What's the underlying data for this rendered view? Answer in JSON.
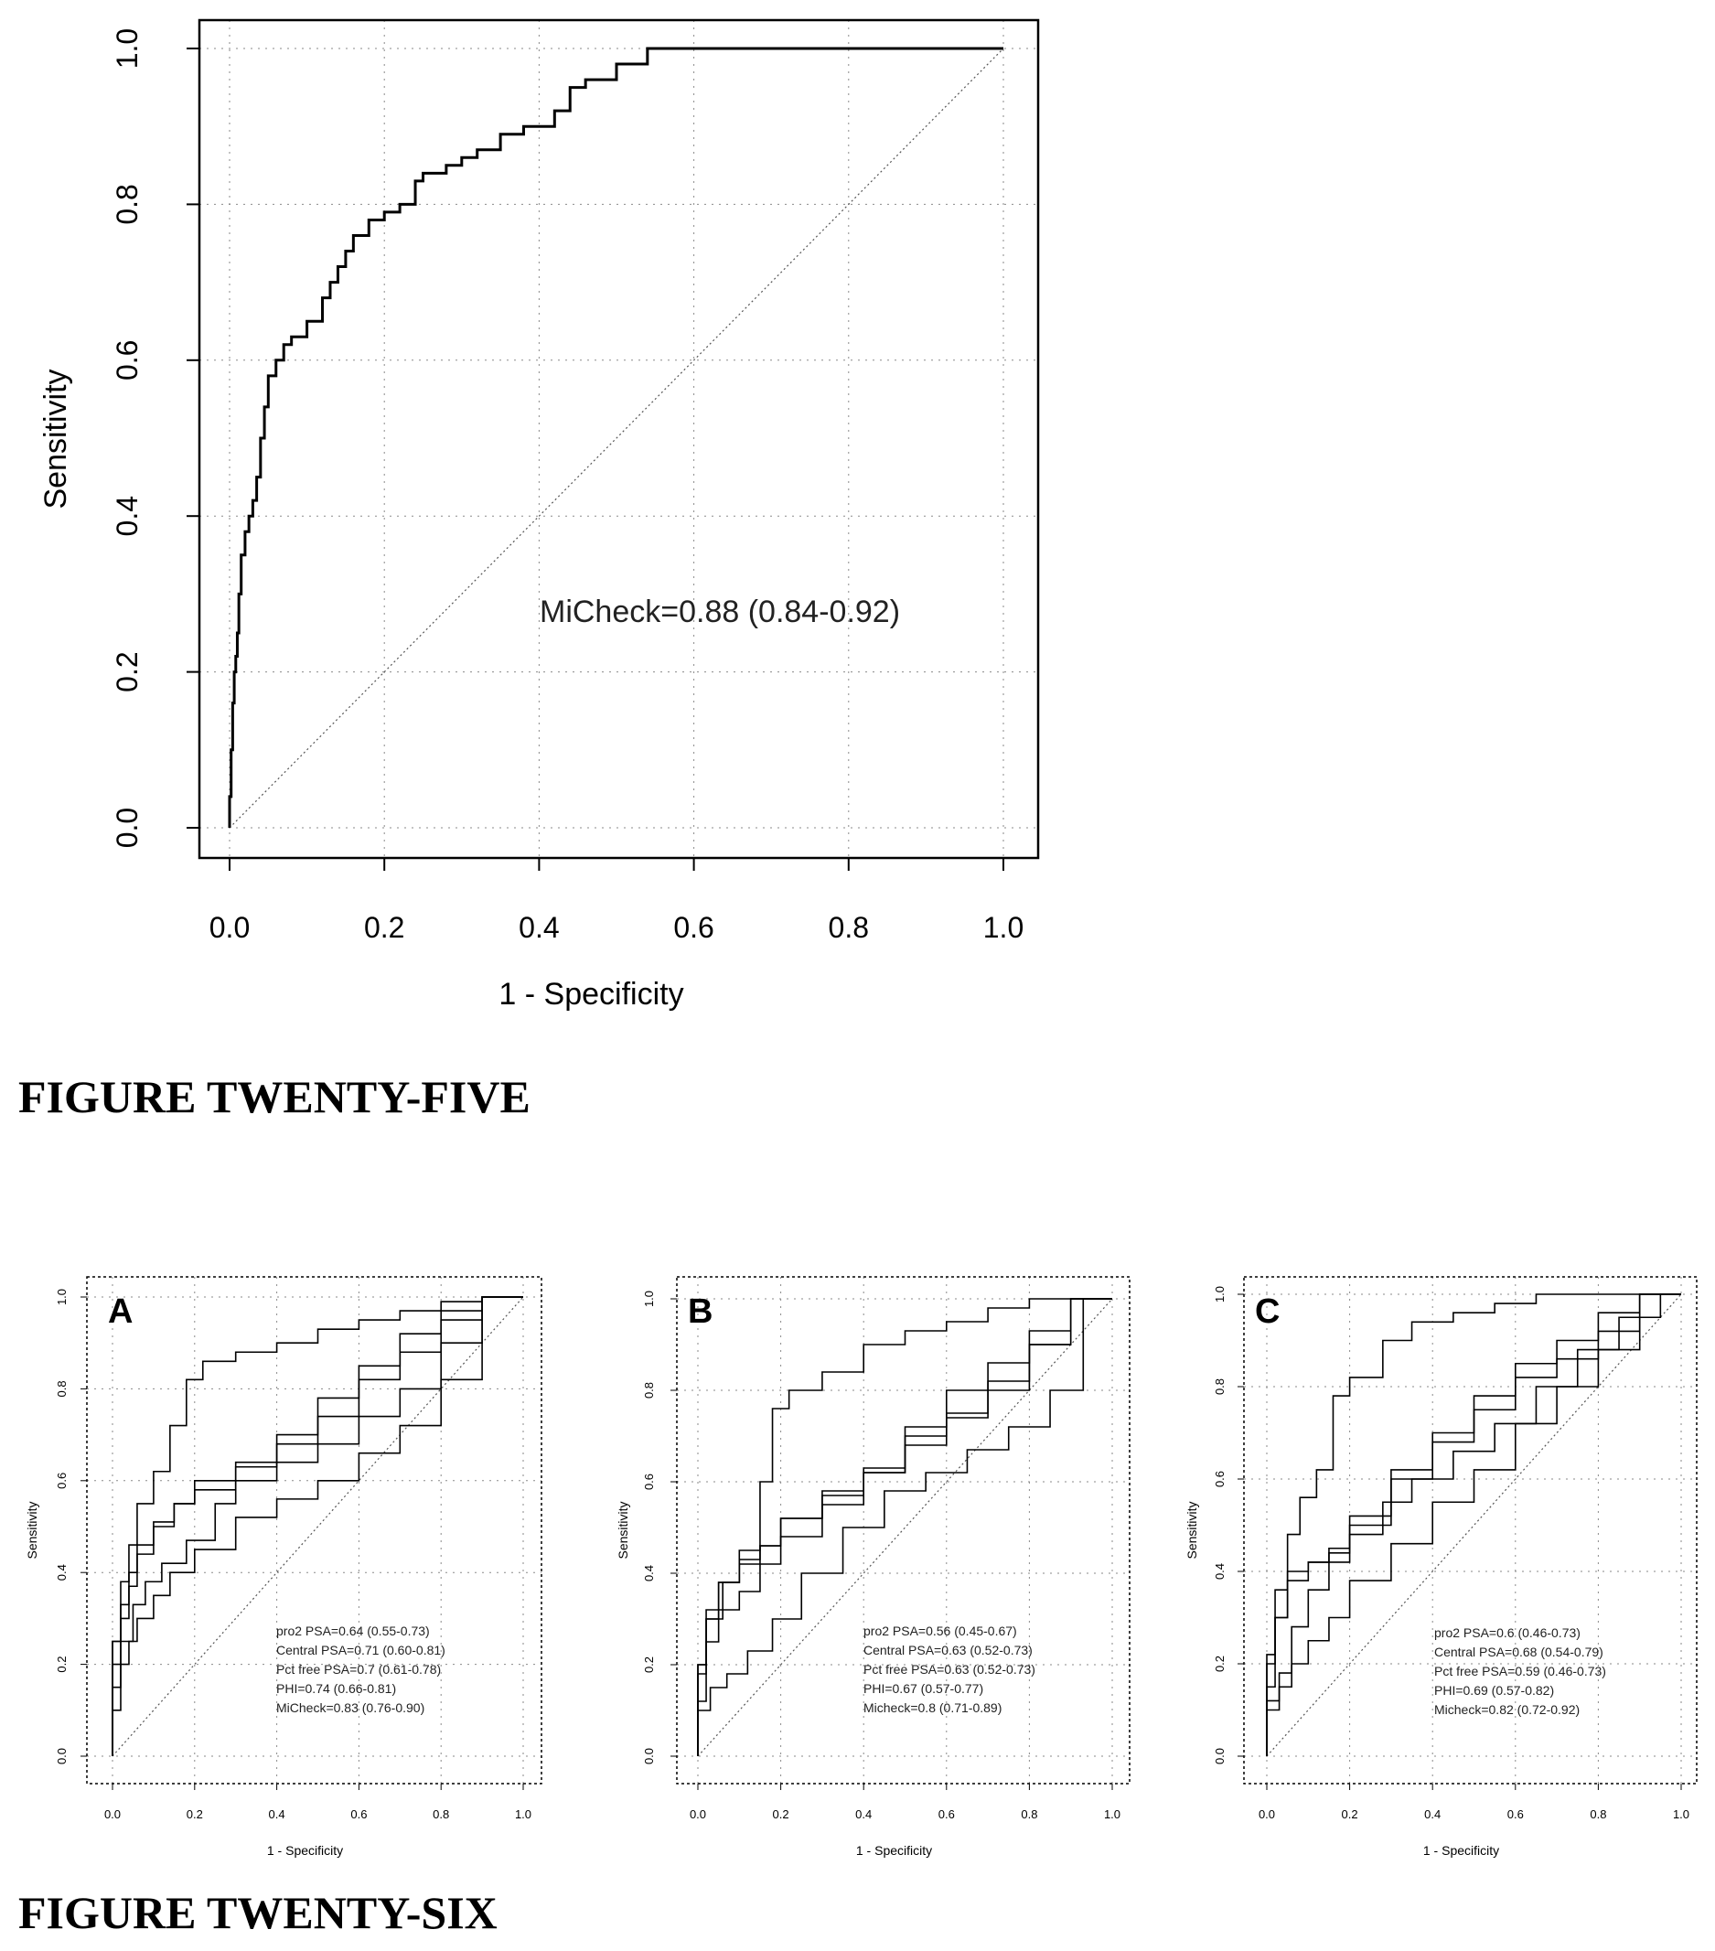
{
  "figures": {
    "figure25_caption": "FIGURE TWENTY-FIVE",
    "figure26_caption": "FIGURE TWENTY-SIX"
  },
  "colors": {
    "ink": "#000000",
    "grid": "#8a8a8a",
    "background": "#ffffff"
  },
  "chart_data": [
    {
      "id": "fig25",
      "type": "line",
      "xlabel": "1 - Specificity",
      "ylabel": "Sensitivity",
      "xlim": [
        0,
        1
      ],
      "ylim": [
        0,
        1
      ],
      "xticks": [
        "0.0",
        "0.2",
        "0.4",
        "0.6",
        "0.8",
        "1.0"
      ],
      "yticks": [
        "0.0",
        "0.2",
        "0.4",
        "0.6",
        "0.8",
        "1.0"
      ],
      "grid": true,
      "diagonal_reference": true,
      "annotations": [
        "MiCheck=0.88 (0.84-0.92)"
      ],
      "series": [
        {
          "x": [
            0,
            0.002,
            0.004,
            0.006,
            0.008,
            0.01,
            0.012,
            0.015,
            0.02,
            0.025,
            0.03,
            0.035,
            0.04,
            0.045,
            0.05,
            0.06,
            0.07,
            0.08,
            0.1,
            0.12,
            0.13,
            0.14,
            0.15,
            0.16,
            0.18,
            0.2,
            0.22,
            0.24,
            0.25,
            0.28,
            0.3,
            0.32,
            0.35,
            0.38,
            0.42,
            0.44,
            0.46,
            0.5,
            0.54,
            0.56,
            0.6,
            1.0
          ],
          "y": [
            0,
            0.04,
            0.1,
            0.16,
            0.2,
            0.22,
            0.25,
            0.3,
            0.35,
            0.38,
            0.4,
            0.42,
            0.45,
            0.5,
            0.54,
            0.58,
            0.6,
            0.62,
            0.63,
            0.65,
            0.68,
            0.7,
            0.72,
            0.74,
            0.76,
            0.78,
            0.79,
            0.8,
            0.83,
            0.84,
            0.85,
            0.86,
            0.87,
            0.89,
            0.9,
            0.92,
            0.95,
            0.96,
            0.98,
            1.0,
            1.0,
            1.0
          ]
        }
      ]
    },
    {
      "id": "fig26A",
      "type": "line",
      "panel_label": "A",
      "xlabel": "1 - Specificity",
      "ylabel": "Sensitivity",
      "xlim": [
        0,
        1
      ],
      "ylim": [
        0,
        1
      ],
      "xticks": [
        "0.0",
        "0.2",
        "0.4",
        "0.6",
        "0.8",
        "1.0"
      ],
      "yticks": [
        "0.0",
        "0.2",
        "0.4",
        "0.6",
        "0.8",
        "1.0"
      ],
      "grid": true,
      "diagonal_reference": true,
      "legend": [
        "pro2 PSA=0.64 (0.55-0.73)",
        "Central PSA=0.71 (0.60-0.81)",
        "Pct free PSA=0.7 (0.61-0.78)",
        "PHI=0.74 (0.66-0.81)",
        "MiCheck=0.83 (0.76-0.90)"
      ],
      "series": [
        {
          "x": [
            0,
            0.02,
            0.04,
            0.06,
            0.1,
            0.14,
            0.2,
            0.3,
            0.4,
            0.5,
            0.6,
            0.7,
            0.8,
            0.9,
            1.0
          ],
          "y": [
            0,
            0.1,
            0.2,
            0.25,
            0.3,
            0.35,
            0.4,
            0.45,
            0.52,
            0.56,
            0.6,
            0.66,
            0.72,
            0.82,
            1.0
          ]
        },
        {
          "x": [
            0,
            0.02,
            0.04,
            0.06,
            0.1,
            0.15,
            0.2,
            0.3,
            0.4,
            0.5,
            0.6,
            0.7,
            0.8,
            0.9,
            1.0
          ],
          "y": [
            0,
            0.2,
            0.3,
            0.37,
            0.44,
            0.5,
            0.55,
            0.58,
            0.63,
            0.68,
            0.74,
            0.82,
            0.88,
            0.95,
            1.0
          ]
        },
        {
          "x": [
            0,
            0.02,
            0.05,
            0.08,
            0.12,
            0.18,
            0.25,
            0.3,
            0.4,
            0.5,
            0.6,
            0.7,
            0.8,
            0.9,
            1.0
          ],
          "y": [
            0,
            0.15,
            0.25,
            0.33,
            0.38,
            0.42,
            0.47,
            0.55,
            0.6,
            0.64,
            0.68,
            0.74,
            0.8,
            0.9,
            1.0
          ]
        },
        {
          "x": [
            0,
            0.02,
            0.04,
            0.06,
            0.1,
            0.15,
            0.2,
            0.3,
            0.4,
            0.5,
            0.6,
            0.7,
            0.8,
            0.9,
            1.0
          ],
          "y": [
            0,
            0.25,
            0.33,
            0.4,
            0.46,
            0.51,
            0.55,
            0.6,
            0.64,
            0.7,
            0.78,
            0.85,
            0.92,
            0.97,
            1.0
          ]
        },
        {
          "x": [
            0,
            0.02,
            0.04,
            0.06,
            0.1,
            0.14,
            0.18,
            0.22,
            0.3,
            0.4,
            0.5,
            0.6,
            0.7,
            0.8,
            0.9,
            1.0
          ],
          "y": [
            0,
            0.25,
            0.38,
            0.46,
            0.55,
            0.62,
            0.72,
            0.82,
            0.86,
            0.88,
            0.9,
            0.93,
            0.95,
            0.97,
            0.99,
            1.0
          ]
        }
      ]
    },
    {
      "id": "fig26B",
      "type": "line",
      "panel_label": "B",
      "xlabel": "1 - Specificity",
      "ylabel": "Sensitivity",
      "xlim": [
        0,
        1
      ],
      "ylim": [
        0,
        1
      ],
      "xticks": [
        "0.0",
        "0.2",
        "0.4",
        "0.6",
        "0.8",
        "1.0"
      ],
      "yticks": [
        "0.0",
        "0.2",
        "0.4",
        "0.6",
        "0.8",
        "1.0"
      ],
      "grid": true,
      "diagonal_reference": true,
      "legend": [
        "pro2 PSA=0.56 (0.45-0.67)",
        "Central PSA=0.63 (0.52-0.73)",
        "Pct free PSA=0.63 (0.52-0.73)",
        "PHI=0.67 (0.57-0.77)",
        "Micheck=0.8 (0.71-0.89)"
      ],
      "series": [
        {
          "x": [
            0,
            0.03,
            0.07,
            0.12,
            0.18,
            0.25,
            0.35,
            0.45,
            0.55,
            0.65,
            0.75,
            0.85,
            0.93,
            1.0
          ],
          "y": [
            0,
            0.1,
            0.15,
            0.18,
            0.23,
            0.3,
            0.4,
            0.5,
            0.58,
            0.62,
            0.67,
            0.72,
            0.8,
            1.0
          ]
        },
        {
          "x": [
            0,
            0.02,
            0.05,
            0.1,
            0.15,
            0.2,
            0.3,
            0.4,
            0.5,
            0.6,
            0.7,
            0.8,
            0.9,
            1.0
          ],
          "y": [
            0,
            0.12,
            0.25,
            0.32,
            0.36,
            0.42,
            0.48,
            0.55,
            0.62,
            0.7,
            0.75,
            0.82,
            0.9,
            1.0
          ]
        },
        {
          "x": [
            0,
            0.02,
            0.06,
            0.1,
            0.15,
            0.2,
            0.3,
            0.4,
            0.5,
            0.6,
            0.7,
            0.8,
            0.9,
            1.0
          ],
          "y": [
            0,
            0.2,
            0.3,
            0.38,
            0.43,
            0.46,
            0.52,
            0.57,
            0.62,
            0.68,
            0.74,
            0.8,
            0.9,
            1.0
          ]
        },
        {
          "x": [
            0,
            0.02,
            0.05,
            0.1,
            0.15,
            0.2,
            0.3,
            0.4,
            0.5,
            0.6,
            0.7,
            0.8,
            0.9,
            1.0
          ],
          "y": [
            0,
            0.2,
            0.32,
            0.38,
            0.42,
            0.46,
            0.52,
            0.58,
            0.63,
            0.72,
            0.8,
            0.86,
            0.93,
            1.0
          ]
        },
        {
          "x": [
            0,
            0.02,
            0.05,
            0.1,
            0.15,
            0.18,
            0.22,
            0.3,
            0.4,
            0.5,
            0.6,
            0.7,
            0.8,
            0.9,
            1.0
          ],
          "y": [
            0,
            0.18,
            0.3,
            0.38,
            0.45,
            0.6,
            0.76,
            0.8,
            0.84,
            0.9,
            0.93,
            0.95,
            0.98,
            1.0,
            1.0
          ]
        }
      ]
    },
    {
      "id": "fig26C",
      "type": "line",
      "panel_label": "C",
      "xlabel": "1 - Specificity",
      "ylabel": "Sensitivity",
      "xlim": [
        0,
        1
      ],
      "ylim": [
        0,
        1
      ],
      "xticks": [
        "0.0",
        "0.2",
        "0.4",
        "0.6",
        "0.8",
        "1.0"
      ],
      "yticks": [
        "0.0",
        "0.2",
        "0.4",
        "0.6",
        "0.8",
        "1.0"
      ],
      "grid": true,
      "diagonal_reference": true,
      "legend": [
        "pro2 PSA=0.6 (0.46-0.73)",
        "Central PSA=0.68 (0.54-0.79)",
        "Pct free PSA=0.59 (0.46-0.73)",
        "PHI=0.69 (0.57-0.82)",
        "Micheck=0.82 (0.72-0.92)"
      ],
      "series": [
        {
          "x": [
            0,
            0.03,
            0.06,
            0.1,
            0.15,
            0.2,
            0.3,
            0.4,
            0.5,
            0.6,
            0.7,
            0.8,
            0.9,
            1.0
          ],
          "y": [
            0,
            0.1,
            0.15,
            0.2,
            0.25,
            0.3,
            0.38,
            0.46,
            0.55,
            0.62,
            0.72,
            0.8,
            0.88,
            1.0
          ]
        },
        {
          "x": [
            0,
            0.02,
            0.05,
            0.1,
            0.15,
            0.2,
            0.3,
            0.4,
            0.5,
            0.6,
            0.7,
            0.8,
            0.9,
            1.0
          ],
          "y": [
            0,
            0.15,
            0.3,
            0.4,
            0.42,
            0.44,
            0.5,
            0.6,
            0.68,
            0.75,
            0.82,
            0.86,
            0.92,
            1.0
          ]
        },
        {
          "x": [
            0,
            0.03,
            0.06,
            0.1,
            0.15,
            0.2,
            0.28,
            0.35,
            0.45,
            0.55,
            0.65,
            0.75,
            0.85,
            0.95,
            1.0
          ],
          "y": [
            0,
            0.12,
            0.18,
            0.28,
            0.36,
            0.42,
            0.48,
            0.55,
            0.6,
            0.66,
            0.72,
            0.8,
            0.88,
            0.95,
            1.0
          ]
        },
        {
          "x": [
            0,
            0.02,
            0.05,
            0.1,
            0.15,
            0.2,
            0.3,
            0.4,
            0.5,
            0.6,
            0.7,
            0.8,
            0.9,
            1.0
          ],
          "y": [
            0,
            0.2,
            0.3,
            0.38,
            0.42,
            0.45,
            0.52,
            0.62,
            0.7,
            0.78,
            0.85,
            0.9,
            0.96,
            1.0
          ]
        },
        {
          "x": [
            0,
            0.02,
            0.05,
            0.08,
            0.12,
            0.16,
            0.2,
            0.28,
            0.35,
            0.45,
            0.55,
            0.65,
            0.75,
            0.85,
            1.0
          ],
          "y": [
            0,
            0.22,
            0.36,
            0.48,
            0.56,
            0.62,
            0.78,
            0.82,
            0.9,
            0.94,
            0.96,
            0.98,
            1.0,
            1.0,
            1.0
          ]
        }
      ]
    }
  ]
}
